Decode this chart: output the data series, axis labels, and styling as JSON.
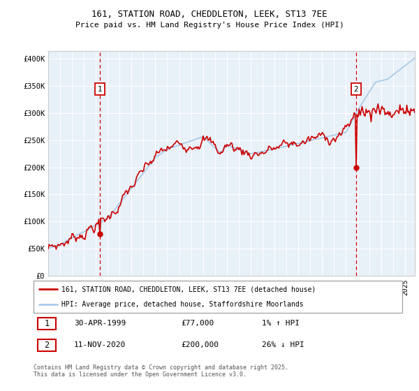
{
  "title_line1": "161, STATION ROAD, CHEDDLETON, LEEK, ST13 7EE",
  "title_line2": "Price paid vs. HM Land Registry's House Price Index (HPI)",
  "yticks": [
    0,
    50000,
    100000,
    150000,
    200000,
    250000,
    300000,
    350000,
    400000
  ],
  "ytick_labels": [
    "£0",
    "£50K",
    "£100K",
    "£150K",
    "£200K",
    "£250K",
    "£300K",
    "£350K",
    "£400K"
  ],
  "ylim": [
    0,
    415000
  ],
  "xlim_start": 1995.0,
  "xlim_end": 2025.8,
  "hpi_color": "#aacce8",
  "price_color": "#cc0000",
  "marker1_x": 1999.33,
  "marker1_y": 77000,
  "marker1_label": "1",
  "marker2_x": 2020.87,
  "marker2_y": 200000,
  "marker2_label": "2",
  "legend_line1": "161, STATION ROAD, CHEDDLETON, LEEK, ST13 7EE (detached house)",
  "legend_line2": "HPI: Average price, detached house, Staffordshire Moorlands",
  "annotation1_num": "1",
  "annotation1_date": "30-APR-1999",
  "annotation1_price": "£77,000",
  "annotation1_hpi": "1% ↑ HPI",
  "annotation2_num": "2",
  "annotation2_date": "11-NOV-2020",
  "annotation2_price": "£200,000",
  "annotation2_hpi": "26% ↓ HPI",
  "footer": "Contains HM Land Registry data © Crown copyright and database right 2025.\nThis data is licensed under the Open Government Licence v3.0.",
  "bg_color": "#ffffff",
  "plot_bg_color": "#e8f0f8",
  "grid_color": "#ffffff"
}
